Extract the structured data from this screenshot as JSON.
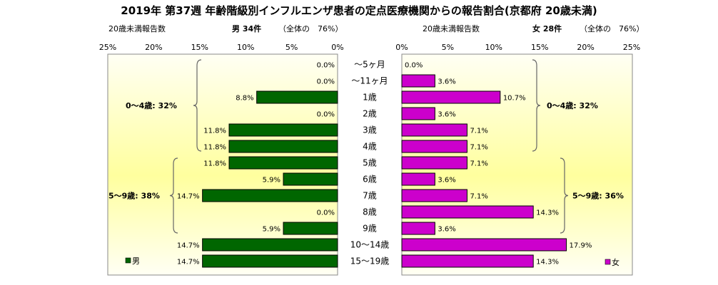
{
  "chart_data": {
    "type": "bar",
    "title": "2019年 第37週 年齢階級別インフルエンザ患者の定点医療機関からの報告割合(京都府 20歳未満)",
    "categories": [
      "～5ヶ月",
      "～11ヶ月",
      "1歳",
      "2歳",
      "3歳",
      "4歳",
      "5歳",
      "6歳",
      "7歳",
      "8歳",
      "9歳",
      "10～14歳",
      "15～19歳"
    ],
    "left_panel": {
      "header_left": "20歳未満報告数",
      "header_count": "男 34件",
      "header_share": "（全体の　76%）",
      "legend": "男",
      "color": "#006600",
      "tick_labels": [
        "25%",
        "20%",
        "15%",
        "10%",
        "5%",
        "0%"
      ],
      "xlim": [
        0,
        25
      ],
      "series": [
        {
          "name": "男",
          "values": [
            0.0,
            0.0,
            8.8,
            0.0,
            11.8,
            11.8,
            11.8,
            5.9,
            14.7,
            0.0,
            5.9,
            14.7,
            14.7
          ]
        }
      ],
      "value_labels": [
        "0.0%",
        "0.0%",
        "8.8%",
        "0.0%",
        "11.8%",
        "11.8%",
        "11.8%",
        "5.9%",
        "14.7%",
        "0.0%",
        "5.9%",
        "14.7%",
        "14.7%"
      ],
      "groups": [
        {
          "label": "0～4歳: 32%",
          "from": 0,
          "to": 5
        },
        {
          "label": "5～9歳: 38%",
          "from": 6,
          "to": 10
        }
      ]
    },
    "right_panel": {
      "header_left": "20歳未満報告数",
      "header_count": "女 28件",
      "header_share": "（全体の　76%）",
      "legend": "女",
      "color": "#cc00cc",
      "tick_labels": [
        "0%",
        "5%",
        "10%",
        "15%",
        "20%",
        "25%"
      ],
      "xlim": [
        0,
        25
      ],
      "series": [
        {
          "name": "女",
          "values": [
            0.0,
            3.6,
            10.7,
            3.6,
            7.1,
            7.1,
            7.1,
            3.6,
            7.1,
            14.3,
            3.6,
            17.9,
            14.3
          ]
        }
      ],
      "value_labels": [
        "0.0%",
        "3.6%",
        "10.7%",
        "3.6%",
        "7.1%",
        "7.1%",
        "7.1%",
        "3.6%",
        "7.1%",
        "14.3%",
        "3.6%",
        "17.9%",
        "14.3%"
      ],
      "groups": [
        {
          "label": "0～4歳: 32%",
          "from": 0,
          "to": 5
        },
        {
          "label": "5～9歳: 36%",
          "from": 6,
          "to": 10
        }
      ]
    },
    "colors": {
      "plot_bg_edge": "#fffff0",
      "plot_bg_center": "#ffff99",
      "bar_edge": "#000000"
    }
  }
}
